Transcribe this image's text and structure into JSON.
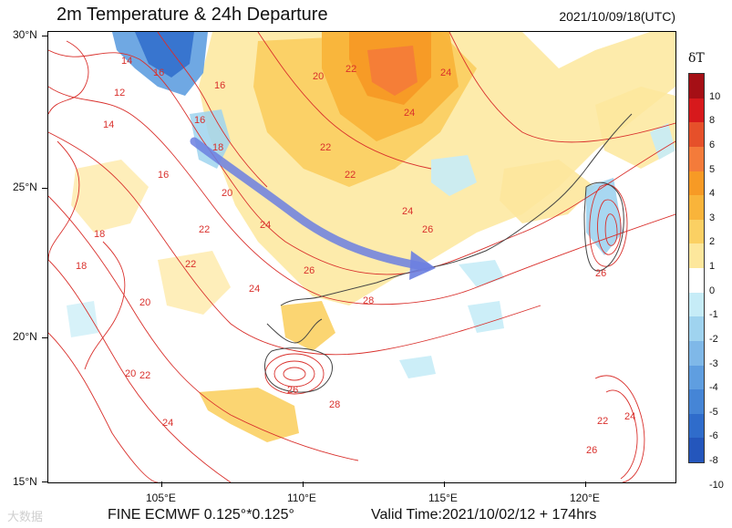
{
  "header": {
    "title": "2m Temperature & 24h Departure",
    "timestamp": "2021/10/09/18(UTC)"
  },
  "footer": {
    "model": "FINE ECMWF 0.125°*0.125°",
    "valid_time": "Valid Time:2021/10/02/12 + 174hrs",
    "watermark": "大数据"
  },
  "axes": {
    "lat_labels": [
      "30°N",
      "25°N",
      "20°N",
      "15°N"
    ],
    "lon_labels": [
      "105°E",
      "110°E",
      "115°E",
      "120°E"
    ]
  },
  "legend": {
    "title": "δT",
    "levels": [
      "10",
      "8",
      "6",
      "5",
      "4",
      "3",
      "2",
      "1",
      "0",
      "-1",
      "-2",
      "-3",
      "-4",
      "-5",
      "-6",
      "-8",
      "-10"
    ],
    "colors": [
      "#a50f15",
      "#d7191c",
      "#e6502a",
      "#f47b3a",
      "#f79a25",
      "#f9b43a",
      "#fbd063",
      "#fde79c",
      "#ffffff",
      "#c6ecf7",
      "#9fd3ef",
      "#7fb8e8",
      "#5f9ee0",
      "#4585d6",
      "#2f6ccb",
      "#2456bc"
    ]
  },
  "contour_labels": [
    "14",
    "16",
    "16",
    "16",
    "18",
    "12",
    "14",
    "16",
    "18",
    "20",
    "20",
    "22",
    "22",
    "22",
    "24",
    "24",
    "24",
    "26",
    "28",
    "26",
    "24",
    "22",
    "20",
    "22",
    "24",
    "26",
    "28",
    "26",
    "24",
    "22",
    "20",
    "18",
    "22",
    "24",
    "26"
  ],
  "colors": {
    "contour": "#d9302c",
    "coast": "#444444",
    "arrow": "#6b7fe0"
  }
}
